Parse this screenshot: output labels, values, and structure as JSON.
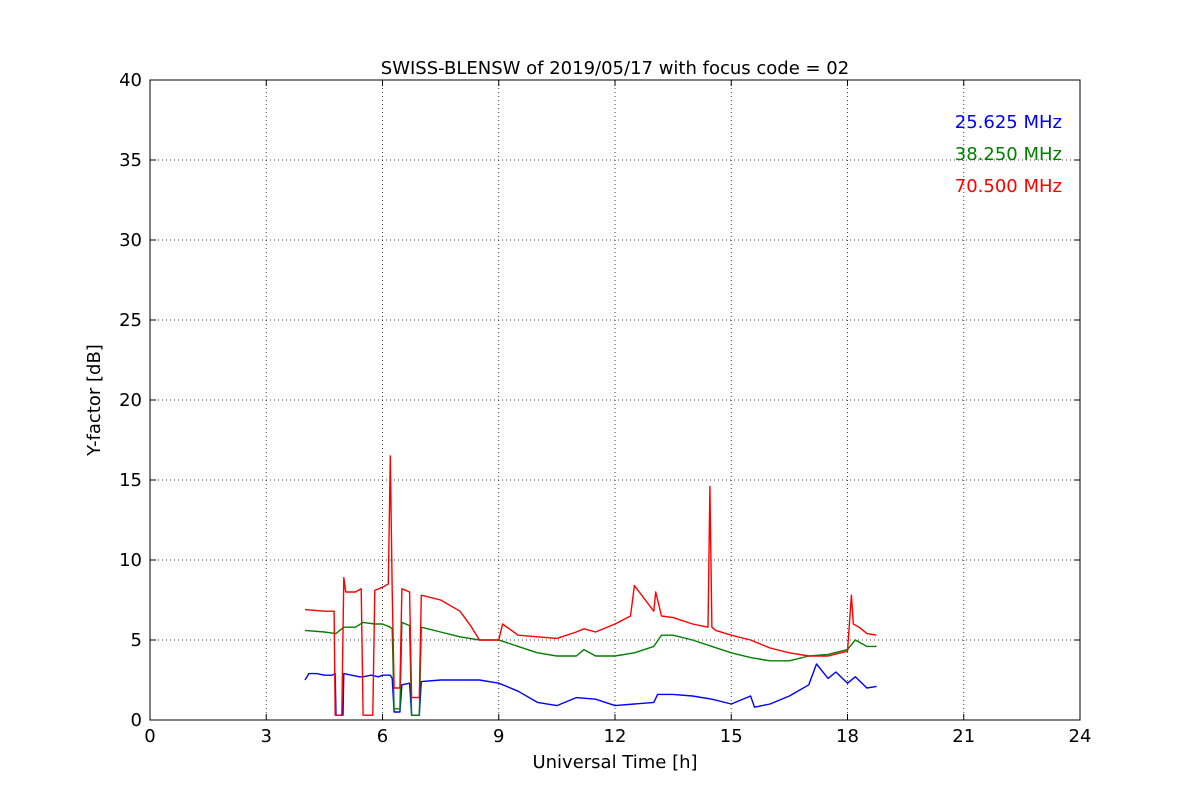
{
  "chart_data": {
    "type": "line",
    "title": "SWISS-BLENSW of 2019/05/17 with focus code = 02",
    "xlabel": "Universal Time [h]",
    "ylabel": "Y-factor [dB]",
    "xlim": [
      0,
      24
    ],
    "ylim": [
      0,
      40
    ],
    "xticks": [
      0,
      3,
      6,
      9,
      12,
      15,
      18,
      21,
      24
    ],
    "yticks": [
      0,
      5,
      10,
      15,
      20,
      25,
      30,
      35,
      40
    ],
    "xtick_labels": [
      "0",
      "3",
      "6",
      "9",
      "12",
      "15",
      "18",
      "21",
      "24"
    ],
    "ytick_labels": [
      "0",
      "5",
      "10",
      "15",
      "20",
      "25",
      "30",
      "35",
      "40"
    ],
    "grid": true,
    "legend_position": "top-right",
    "series": [
      {
        "name": "25.625 MHz",
        "color": "#0000ff",
        "x": [
          4.0,
          4.1,
          4.3,
          4.5,
          4.7,
          4.78,
          4.8,
          4.98,
          5.0,
          5.2,
          5.4,
          5.5,
          5.7,
          5.9,
          6.0,
          6.2,
          6.25,
          6.3,
          6.45,
          6.5,
          6.7,
          6.75,
          6.95,
          7.0,
          7.5,
          8.0,
          8.5,
          9.0,
          9.5,
          10.0,
          10.5,
          11.0,
          11.5,
          12.0,
          12.5,
          13.0,
          13.1,
          13.5,
          14.0,
          14.5,
          15.0,
          15.5,
          15.6,
          15.8,
          16.0,
          16.5,
          17.0,
          17.2,
          17.5,
          17.7,
          18.0,
          18.2,
          18.5,
          18.75
        ],
        "y": [
          2.5,
          2.9,
          2.9,
          2.8,
          2.8,
          2.9,
          0.3,
          0.3,
          2.9,
          2.8,
          2.7,
          2.7,
          2.8,
          2.7,
          2.8,
          2.8,
          2.6,
          0.5,
          0.5,
          2.2,
          2.3,
          0.3,
          0.3,
          2.4,
          2.5,
          2.5,
          2.5,
          2.3,
          1.8,
          1.1,
          0.9,
          1.4,
          1.3,
          0.9,
          1.0,
          1.1,
          1.6,
          1.6,
          1.5,
          1.3,
          1.0,
          1.5,
          0.8,
          0.9,
          1.0,
          1.5,
          2.2,
          3.5,
          2.6,
          3.0,
          2.3,
          2.7,
          2.0,
          2.1
        ]
      },
      {
        "name": "38.250 MHz",
        "color": "#008000",
        "x": [
          4.0,
          4.5,
          4.8,
          5.0,
          5.3,
          5.5,
          5.8,
          6.0,
          6.2,
          6.25,
          6.3,
          6.45,
          6.5,
          6.7,
          6.75,
          6.95,
          7.0,
          7.5,
          8.0,
          8.5,
          9.0,
          9.5,
          10.0,
          10.5,
          11.0,
          11.2,
          11.5,
          12.0,
          12.5,
          13.0,
          13.2,
          13.5,
          14.0,
          14.5,
          15.0,
          15.5,
          16.0,
          16.5,
          17.0,
          17.5,
          18.0,
          18.2,
          18.5,
          18.75
        ],
        "y": [
          5.6,
          5.5,
          5.4,
          5.8,
          5.8,
          6.1,
          6.0,
          6.0,
          5.8,
          5.7,
          0.7,
          0.7,
          6.1,
          5.9,
          0.3,
          0.3,
          5.8,
          5.5,
          5.2,
          5.0,
          5.0,
          4.6,
          4.2,
          4.0,
          4.0,
          4.4,
          4.0,
          4.0,
          4.2,
          4.6,
          5.3,
          5.3,
          5.0,
          4.6,
          4.2,
          3.9,
          3.7,
          3.7,
          4.0,
          4.1,
          4.4,
          5.0,
          4.6,
          4.6
        ]
      },
      {
        "name": "70.500 MHz",
        "color": "#ff0000",
        "x": [
          4.0,
          4.5,
          4.75,
          4.78,
          4.95,
          5.0,
          5.05,
          5.3,
          5.45,
          5.5,
          5.75,
          5.8,
          6.0,
          6.15,
          6.2,
          6.25,
          6.3,
          6.45,
          6.5,
          6.7,
          6.75,
          6.95,
          7.0,
          7.5,
          8.0,
          8.3,
          8.5,
          9.0,
          9.1,
          9.5,
          10.0,
          10.5,
          11.0,
          11.2,
          11.5,
          12.0,
          12.4,
          12.5,
          13.0,
          13.05,
          13.2,
          13.5,
          14.0,
          14.4,
          14.45,
          14.5,
          14.6,
          15.0,
          15.5,
          16.0,
          16.5,
          17.0,
          17.5,
          18.0,
          18.1,
          18.15,
          18.3,
          18.5,
          18.75
        ],
        "y": [
          6.9,
          6.8,
          6.8,
          0.3,
          0.3,
          8.9,
          8.0,
          8.0,
          8.2,
          0.3,
          0.3,
          8.1,
          8.3,
          8.5,
          16.5,
          8.1,
          2.0,
          2.0,
          8.2,
          8.0,
          1.4,
          1.4,
          7.8,
          7.5,
          6.8,
          5.8,
          5.0,
          5.0,
          6.0,
          5.3,
          5.2,
          5.1,
          5.5,
          5.7,
          5.5,
          6.0,
          6.5,
          8.4,
          6.8,
          8.0,
          6.5,
          6.4,
          6.0,
          5.8,
          14.6,
          5.8,
          5.6,
          5.3,
          5.0,
          4.5,
          4.2,
          4.0,
          4.0,
          4.3,
          7.8,
          6.0,
          5.8,
          5.4,
          5.3
        ]
      }
    ]
  }
}
